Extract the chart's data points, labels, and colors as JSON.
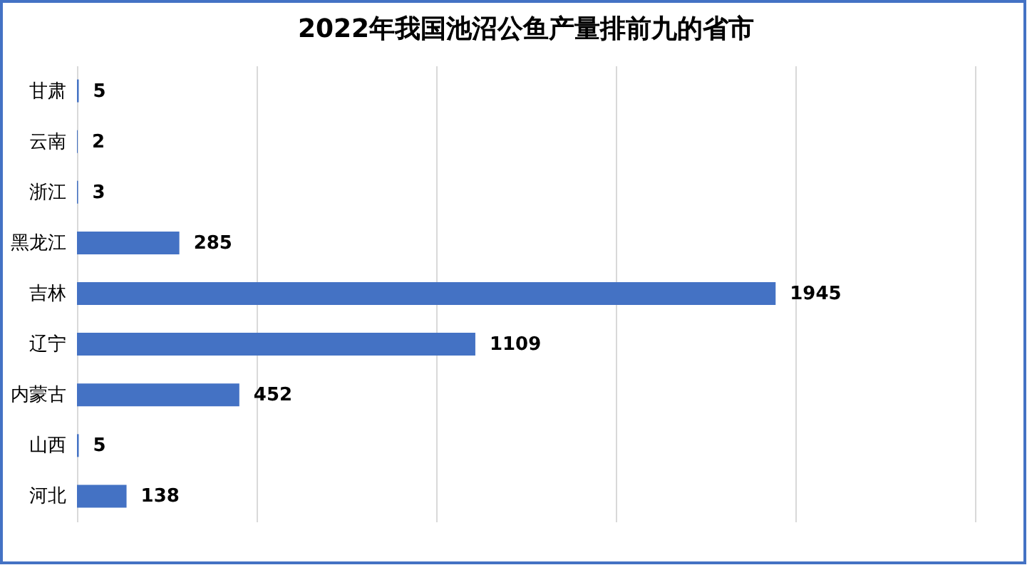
{
  "chart_data": {
    "type": "bar",
    "orientation": "horizontal",
    "title": "2022年我国池沼公鱼产量排前九的省市",
    "categories": [
      "甘肃",
      "云南",
      "浙江",
      "黑龙江",
      "吉林",
      "辽宁",
      "内蒙古",
      "山西",
      "河北"
    ],
    "values": [
      5,
      2,
      3,
      285,
      1945,
      1109,
      452,
      5,
      138
    ],
    "color": "#4472c4",
    "data_labels": true,
    "xlim": [
      0,
      2500
    ],
    "xticks": [
      {
        "value": 0,
        "label": null
      },
      {
        "value": 500,
        "label": null
      },
      {
        "value": 1000,
        "label": null
      },
      {
        "value": 1500,
        "label": null
      },
      {
        "value": 2000,
        "label": null
      },
      {
        "value": 2500,
        "label": null
      }
    ],
    "grid": "x",
    "tick_labels": "y"
  }
}
